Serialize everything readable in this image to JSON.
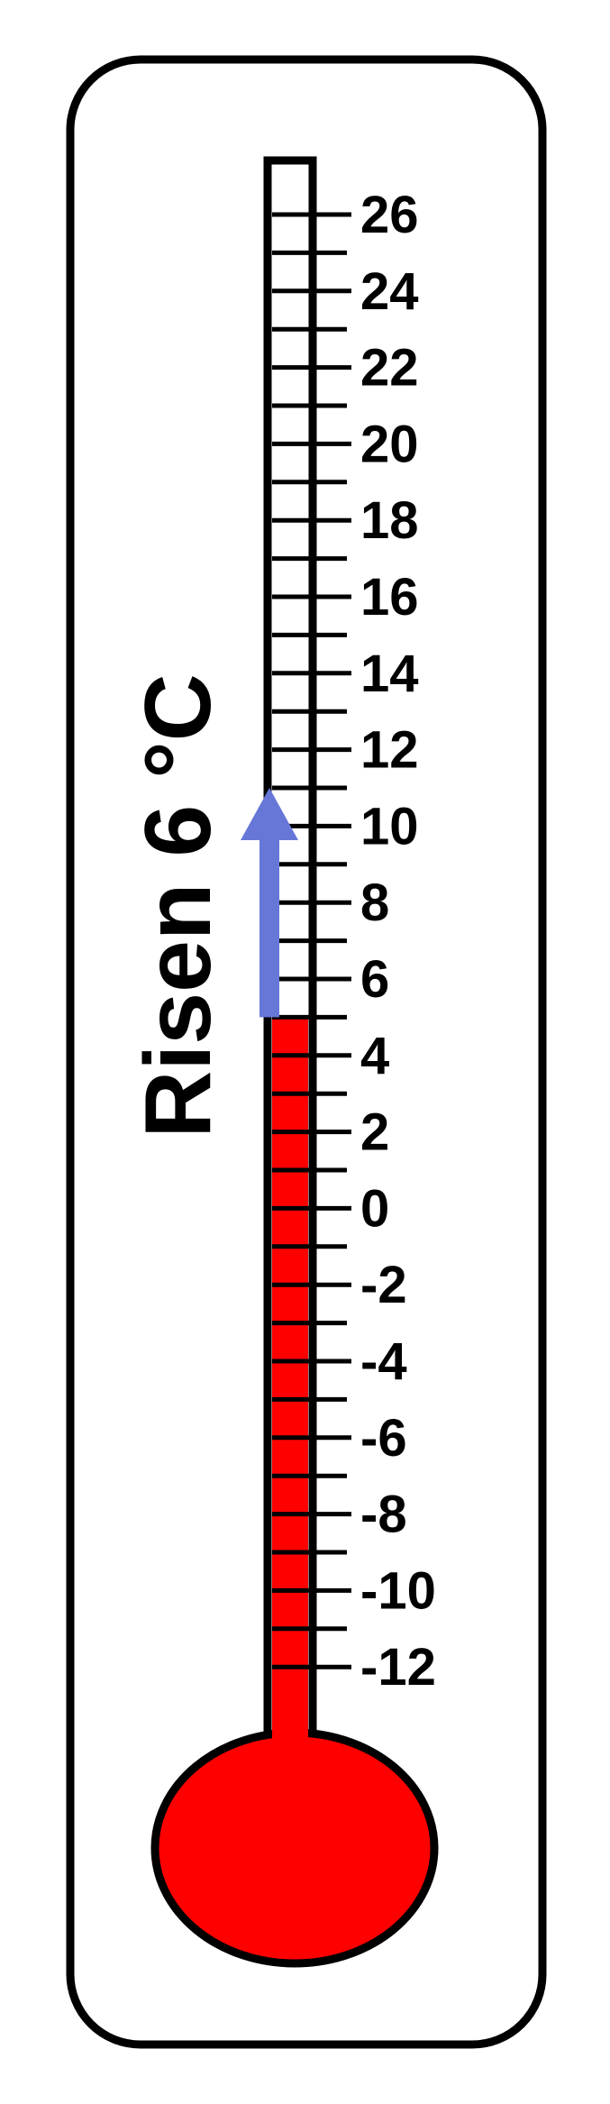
{
  "caption": "Risen 6 °C",
  "scale": {
    "unit": "°C",
    "min": -12,
    "max": 26,
    "label_step": 2,
    "minor_step": 1,
    "labels": [
      "26",
      "24",
      "22",
      "20",
      "18",
      "16",
      "14",
      "12",
      "10",
      "8",
      "6",
      "4",
      "2",
      "0",
      "-2",
      "-4",
      "-6",
      "-8",
      "-10",
      "-12"
    ]
  },
  "reading": {
    "start_value": 5,
    "end_value": 11,
    "change": 6
  },
  "colors": {
    "mercury": "#ff0000",
    "arrow": "#6677d8",
    "outline": "#000000",
    "background": "#ffffff"
  }
}
